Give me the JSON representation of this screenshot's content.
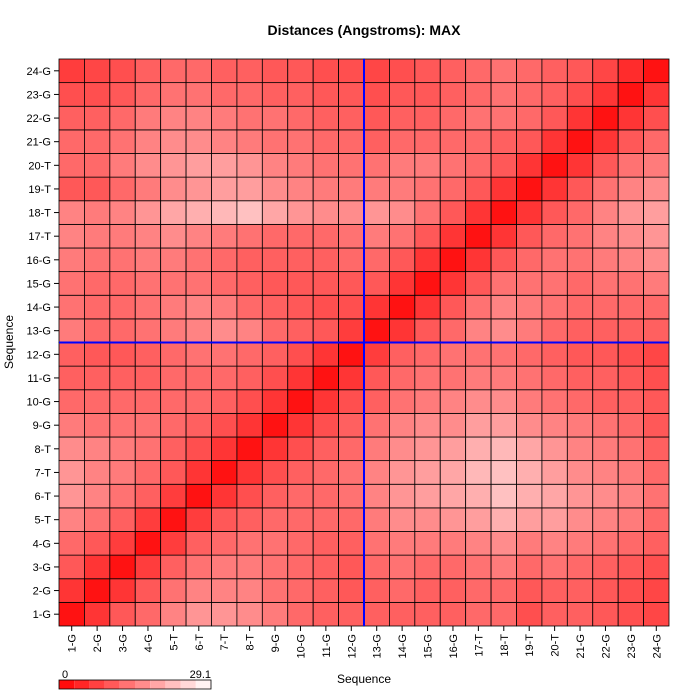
{
  "chart_data": {
    "type": "heatmap",
    "title": "Distances (Angstroms):  MAX",
    "xlabel": "Sequence",
    "ylabel": "Sequence",
    "labels": [
      "1-G",
      "2-G",
      "3-G",
      "4-G",
      "5-T",
      "6-T",
      "7-T",
      "8-T",
      "9-G",
      "10-G",
      "11-G",
      "12-G",
      "13-G",
      "14-G",
      "15-G",
      "16-G",
      "17-T",
      "18-T",
      "19-T",
      "20-T",
      "21-G",
      "22-G",
      "23-G",
      "24-G"
    ],
    "value_min": 0,
    "value_max": 29.1,
    "scale_min_label": "0",
    "scale_max_label": "29.1",
    "color_low": "#ff0000",
    "color_high": "#ffffff",
    "divider_after_index": 12,
    "divider_color": "#0000ff",
    "grid": true,
    "matrix": [
      [
        2,
        6,
        10,
        12,
        15,
        17,
        17,
        16,
        14,
        12,
        11,
        11,
        11,
        11,
        11,
        11,
        12,
        12,
        9,
        11,
        11,
        10,
        9,
        8
      ],
      [
        6,
        2,
        6,
        10,
        13,
        15,
        15,
        15,
        13,
        12,
        11,
        10,
        11,
        12,
        11,
        11,
        12,
        12,
        10,
        11,
        11,
        10,
        9,
        8
      ],
      [
        10,
        6,
        2,
        7,
        11,
        13,
        14,
        14,
        13,
        12,
        11,
        10,
        12,
        13,
        12,
        12,
        13,
        14,
        12,
        13,
        12,
        11,
        10,
        9
      ],
      [
        12,
        10,
        7,
        2,
        7,
        11,
        12,
        13,
        13,
        12,
        11,
        11,
        13,
        14,
        14,
        14,
        15,
        16,
        14,
        15,
        14,
        13,
        12,
        11
      ],
      [
        15,
        13,
        11,
        7,
        2,
        7,
        10,
        11,
        12,
        12,
        12,
        12,
        14,
        16,
        16,
        17,
        18,
        20,
        18,
        18,
        16,
        15,
        14,
        12
      ],
      [
        17,
        15,
        13,
        11,
        7,
        2,
        6,
        9,
        11,
        12,
        12,
        13,
        15,
        17,
        18,
        19,
        20,
        22,
        20,
        19,
        17,
        16,
        15,
        13
      ],
      [
        17,
        15,
        14,
        12,
        10,
        6,
        2,
        6,
        9,
        11,
        12,
        13,
        15,
        17,
        18,
        19,
        21,
        22,
        20,
        18,
        16,
        15,
        14,
        12
      ],
      [
        16,
        15,
        14,
        13,
        11,
        9,
        6,
        2,
        6,
        9,
        11,
        12,
        14,
        16,
        17,
        18,
        20,
        21,
        19,
        17,
        15,
        14,
        13,
        11
      ],
      [
        14,
        13,
        13,
        13,
        12,
        11,
        9,
        6,
        2,
        6,
        9,
        11,
        13,
        15,
        16,
        16,
        18,
        18,
        16,
        15,
        14,
        13,
        12,
        10
      ],
      [
        12,
        12,
        12,
        12,
        12,
        12,
        11,
        9,
        6,
        2,
        6,
        9,
        11,
        13,
        14,
        15,
        16,
        16,
        14,
        13,
        12,
        11,
        11,
        10
      ],
      [
        11,
        11,
        11,
        11,
        12,
        12,
        12,
        11,
        9,
        6,
        2,
        6,
        10,
        12,
        13,
        13,
        14,
        14,
        13,
        12,
        11,
        11,
        10,
        9
      ],
      [
        11,
        10,
        10,
        11,
        12,
        13,
        13,
        12,
        11,
        9,
        6,
        2,
        7,
        11,
        12,
        13,
        13,
        13,
        12,
        11,
        10,
        10,
        9,
        8
      ],
      [
        14,
        12,
        12,
        13,
        14,
        15,
        16,
        15,
        12,
        11,
        10,
        7,
        2,
        6,
        10,
        12,
        15,
        16,
        14,
        12,
        11,
        11,
        11,
        11
      ],
      [
        13,
        12,
        12,
        13,
        14,
        15,
        14,
        12,
        11,
        10,
        9,
        9,
        6,
        2,
        6,
        10,
        13,
        15,
        14,
        13,
        12,
        12,
        12,
        12
      ],
      [
        13,
        12,
        12,
        13,
        13,
        13,
        12,
        11,
        10,
        10,
        10,
        10,
        10,
        6,
        2,
        6,
        10,
        13,
        13,
        13,
        12,
        13,
        13,
        14
      ],
      [
        14,
        13,
        13,
        14,
        14,
        13,
        12,
        11,
        11,
        11,
        11,
        12,
        12,
        10,
        6,
        2,
        6,
        10,
        12,
        13,
        13,
        14,
        15,
        16
      ],
      [
        15,
        14,
        14,
        15,
        16,
        15,
        14,
        13,
        12,
        12,
        12,
        13,
        14,
        13,
        10,
        6,
        2,
        6,
        10,
        12,
        13,
        15,
        16,
        17
      ],
      [
        15,
        14,
        15,
        17,
        19,
        20,
        21,
        22,
        19,
        17,
        16,
        16,
        17,
        16,
        13,
        10,
        6,
        2,
        6,
        10,
        12,
        15,
        17,
        18
      ],
      [
        10,
        10,
        12,
        14,
        16,
        17,
        18,
        18,
        16,
        15,
        14,
        14,
        14,
        14,
        13,
        12,
        10,
        6,
        2,
        6,
        10,
        13,
        15,
        16
      ],
      [
        12,
        12,
        14,
        16,
        17,
        18,
        18,
        17,
        15,
        14,
        13,
        13,
        13,
        14,
        14,
        13,
        12,
        10,
        6,
        2,
        6,
        10,
        13,
        14
      ],
      [
        12,
        12,
        13,
        15,
        16,
        16,
        15,
        14,
        13,
        13,
        12,
        12,
        11,
        12,
        12,
        12,
        12,
        11,
        10,
        6,
        2,
        6,
        10,
        12
      ],
      [
        11,
        11,
        12,
        14,
        15,
        15,
        14,
        13,
        13,
        12,
        11,
        11,
        10,
        11,
        11,
        12,
        13,
        13,
        12,
        10,
        6,
        2,
        6,
        9
      ],
      [
        9,
        9,
        10,
        12,
        13,
        13,
        12,
        12,
        11,
        11,
        10,
        10,
        9,
        10,
        10,
        11,
        12,
        13,
        12,
        11,
        9,
        6,
        2,
        6
      ],
      [
        7,
        8,
        9,
        11,
        12,
        12,
        11,
        11,
        10,
        10,
        9,
        9,
        8,
        9,
        10,
        11,
        12,
        13,
        12,
        11,
        10,
        8,
        5,
        2
      ]
    ]
  }
}
